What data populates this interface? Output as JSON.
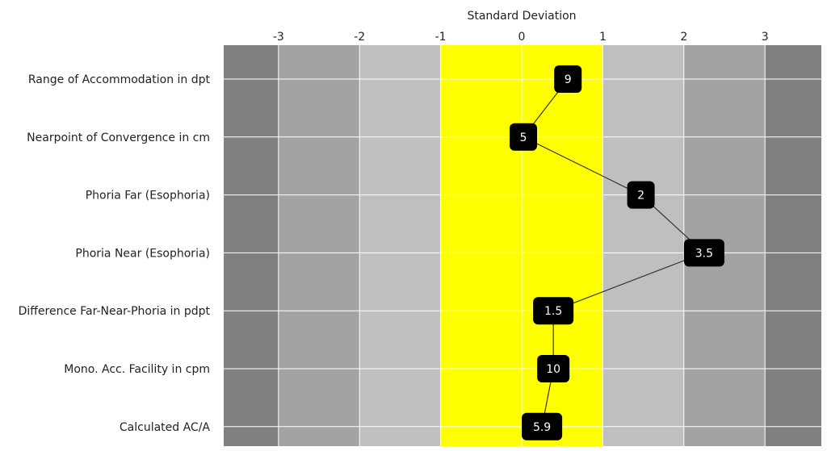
{
  "chart_data": {
    "type": "line",
    "xlabel": "Standard Deviation",
    "xlim": [
      -3.7,
      3.7
    ],
    "xticks": [
      -3,
      -2,
      -1,
      0,
      1,
      2,
      3
    ],
    "xtick_labels": [
      "-3",
      "-2",
      "-1",
      "0",
      "1",
      "2",
      "3"
    ],
    "bands": [
      {
        "from": -3.7,
        "to": -3,
        "color": "#808080"
      },
      {
        "from": -3,
        "to": -2,
        "color": "#a3a3a3"
      },
      {
        "from": -2,
        "to": -1,
        "color": "#bfbfbf"
      },
      {
        "from": -1,
        "to": 1,
        "color": "#ffff00"
      },
      {
        "from": 1,
        "to": 2,
        "color": "#bfbfbf"
      },
      {
        "from": 2,
        "to": 3,
        "color": "#a3a3a3"
      },
      {
        "from": 3,
        "to": 3.7,
        "color": "#808080"
      }
    ],
    "categories": [
      "Range of Accommodation in dpt",
      "Nearpoint of Convergence in cm",
      "Phoria Far (Esophoria)",
      "Phoria Near (Esophoria)",
      "Difference Far-Near-Phoria in pdpt",
      "Mono. Acc. Facility in cpm",
      "Calculated AC/A"
    ],
    "points": [
      {
        "x": 0.57,
        "label": "9"
      },
      {
        "x": 0.02,
        "label": "5"
      },
      {
        "x": 1.47,
        "label": "2"
      },
      {
        "x": 2.25,
        "label": "3.5"
      },
      {
        "x": 0.39,
        "label": "1.5"
      },
      {
        "x": 0.39,
        "label": "10"
      },
      {
        "x": 0.25,
        "label": "5.9"
      }
    ],
    "grid": true,
    "line_color": "#333333",
    "badge_color": "#000000"
  }
}
